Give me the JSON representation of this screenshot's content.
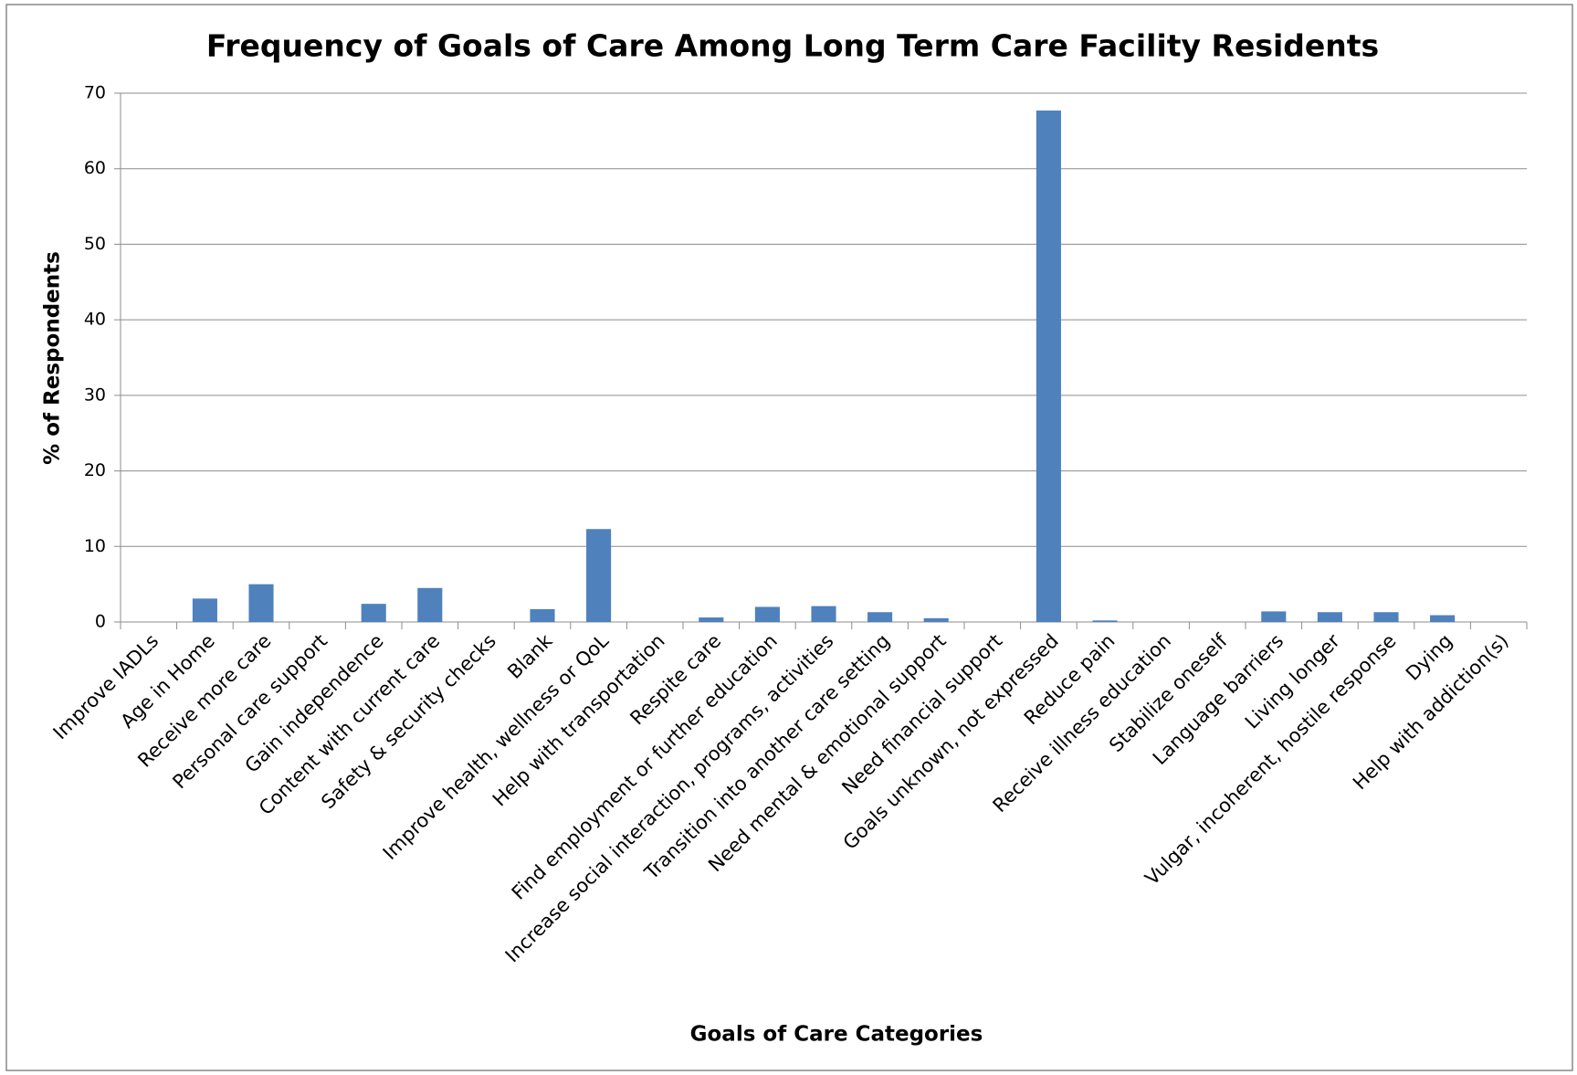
{
  "chart_data": {
    "type": "bar",
    "title": "Frequency of Goals of Care Among Long Term Care Facility Residents",
    "x_label": "Goals of Care Categories",
    "y_label": "% of Respondents",
    "categories": [
      "Improve IADLs",
      "Age in Home",
      "Receive more care",
      "Personal care support",
      "Gain independence",
      "Content with current care",
      "Safety & security checks",
      "Blank",
      "Improve health, wellness or QoL",
      "Help with transportation",
      "Respite care",
      "Find employment or further education",
      "Increase social interaction, programs, activities",
      "Transition into another care setting",
      "Need mental & emotional support",
      "Need financial support",
      "Goals unknown, not expressed",
      "Reduce pain",
      "Receive illness education",
      "Stabilize oneself",
      "Language barriers",
      "Living longer",
      "Vulgar, incoherent, hostile response",
      "Dying",
      "Help with addiction(s)"
    ],
    "values": [
      0,
      3.1,
      5.0,
      0,
      2.4,
      4.5,
      0,
      1.7,
      12.3,
      0,
      0.6,
      2.0,
      2.1,
      1.3,
      0.5,
      0,
      67.7,
      0.2,
      0,
      0,
      1.4,
      1.3,
      1.3,
      0.9,
      0
    ],
    "color": "#4f81bd",
    "ylim": [
      0,
      70
    ],
    "yticks": [
      0,
      10,
      20,
      30,
      40,
      50,
      60,
      70
    ],
    "grid": true
  }
}
